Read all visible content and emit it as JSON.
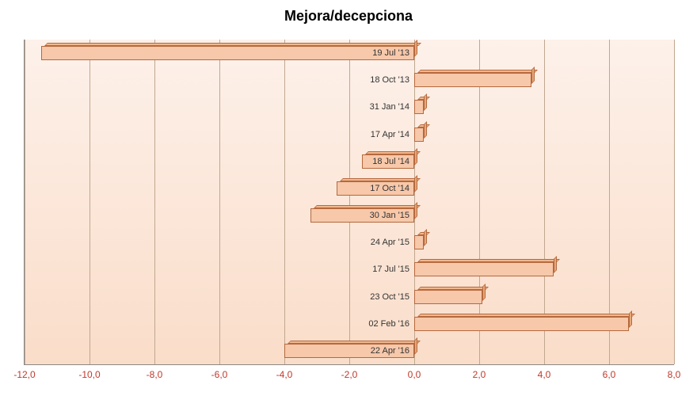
{
  "chart": {
    "type": "bar-horizontal",
    "title": "Mejora/decepciona",
    "title_fontsize": 18,
    "title_color": "#000000",
    "background_gradient_top": "#fdf1ea",
    "background_gradient_bottom": "#faddc9",
    "bar_fill": "#f7c8aa",
    "bar_3d_top": "#f2b88f",
    "bar_3d_side": "#e8a87a",
    "bar_border": "#b5693e",
    "gridline_color": "#c0a890",
    "xaxis_label_color": "#c0392b",
    "yaxis_label_color": "#333333",
    "label_fontsize": 12,
    "xmin": -12.0,
    "xmax": 8.0,
    "xtick_step": 2.0,
    "xticks": [
      "-12,0",
      "-10,0",
      "-8,0",
      "-6,0",
      "-4,0",
      "-2,0",
      "0,0",
      "2,0",
      "4,0",
      "6,0",
      "8,0"
    ],
    "categories": [
      "19 Jul '13",
      "18 Oct '13",
      "31 Jan '14",
      "17 Apr '14",
      "18 Jul '14",
      "17 Oct '14",
      "30 Jan '15",
      "24 Apr '15",
      "17 Jul '15",
      "23 Oct '15",
      "02 Feb '16",
      "22 Apr '16"
    ],
    "values": [
      -11.5,
      3.6,
      0.3,
      0.3,
      -1.6,
      -2.4,
      -3.2,
      0.3,
      4.3,
      2.1,
      6.6,
      -4.0
    ]
  }
}
